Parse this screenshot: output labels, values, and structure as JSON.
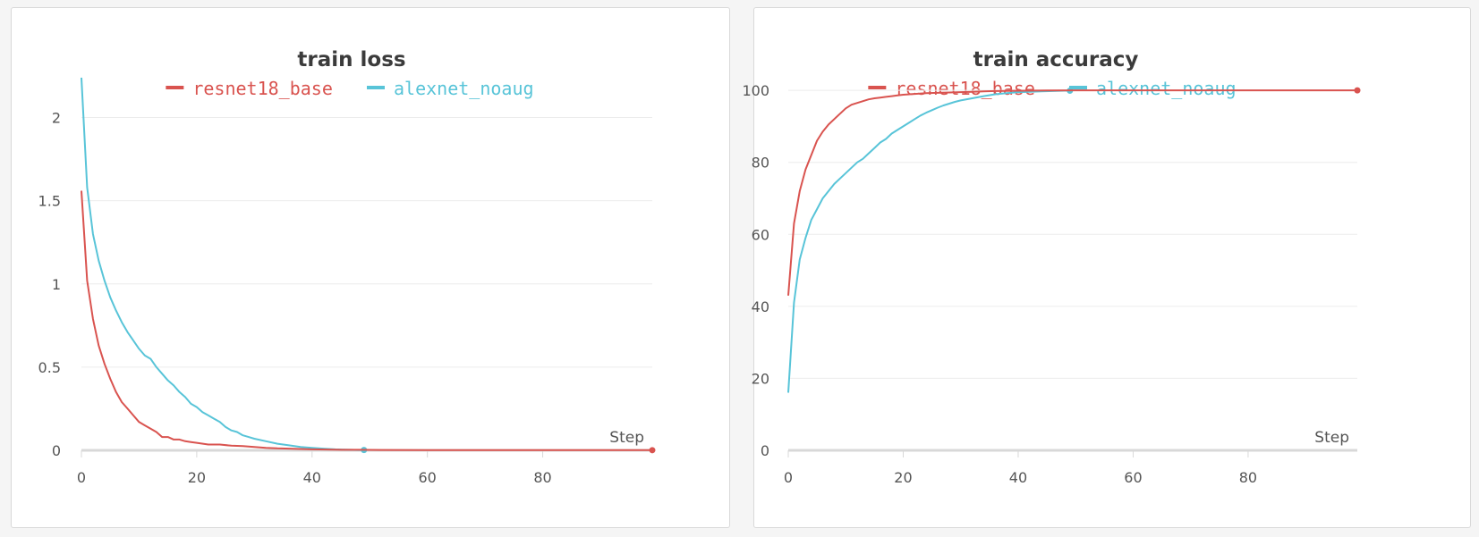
{
  "colors": {
    "resnet18_base": "#d9534f",
    "alexnet_noaug": "#58c4d8",
    "grid": "#ececec",
    "axis": "#d8d8d8"
  },
  "chart_data": [
    {
      "type": "line",
      "title": "train loss",
      "xlabel": "Step",
      "ylabel": "",
      "xlim": [
        0,
        99
      ],
      "ylim": [
        0,
        2.25
      ],
      "xticks": [
        0,
        20,
        40,
        60,
        80
      ],
      "yticks": [
        0,
        0.5,
        1,
        1.5,
        2
      ],
      "xtick_labels": [
        "0",
        "20",
        "40",
        "60",
        "80"
      ],
      "ytick_labels": [
        "0",
        "0.5",
        "1",
        "1.5",
        "2"
      ],
      "grid": true,
      "legend": "top-center",
      "series": [
        {
          "name": "resnet18_base",
          "color": "#d9534f",
          "x": [
            0,
            1,
            2,
            3,
            4,
            5,
            6,
            7,
            8,
            9,
            10,
            11,
            12,
            13,
            14,
            15,
            16,
            17,
            18,
            19,
            20,
            22,
            24,
            26,
            28,
            30,
            32,
            34,
            36,
            38,
            40,
            44,
            48,
            52,
            60,
            70,
            80,
            90,
            99
          ],
          "y": [
            1.56,
            1.02,
            0.79,
            0.63,
            0.52,
            0.43,
            0.35,
            0.29,
            0.25,
            0.21,
            0.17,
            0.15,
            0.13,
            0.11,
            0.08,
            0.08,
            0.065,
            0.065,
            0.055,
            0.05,
            0.045,
            0.035,
            0.035,
            0.028,
            0.025,
            0.02,
            0.015,
            0.012,
            0.01,
            0.008,
            0.006,
            0.004,
            0.003,
            0.002,
            0.001,
            0.001,
            0.001,
            0.001,
            0.001
          ]
        },
        {
          "name": "alexnet_noaug",
          "color": "#58c4d8",
          "x": [
            0,
            1,
            2,
            3,
            4,
            5,
            6,
            7,
            8,
            9,
            10,
            11,
            12,
            13,
            14,
            15,
            16,
            17,
            18,
            19,
            20,
            21,
            22,
            23,
            24,
            25,
            26,
            27,
            28,
            29,
            30,
            32,
            34,
            36,
            38,
            40,
            42,
            44,
            46,
            48,
            49
          ],
          "y": [
            2.24,
            1.58,
            1.3,
            1.14,
            1.02,
            0.92,
            0.84,
            0.77,
            0.71,
            0.66,
            0.61,
            0.57,
            0.55,
            0.5,
            0.46,
            0.42,
            0.39,
            0.35,
            0.32,
            0.28,
            0.26,
            0.23,
            0.21,
            0.19,
            0.17,
            0.14,
            0.12,
            0.11,
            0.09,
            0.08,
            0.07,
            0.055,
            0.04,
            0.03,
            0.02,
            0.015,
            0.01,
            0.006,
            0.004,
            0.002,
            0.002
          ]
        }
      ]
    },
    {
      "type": "line",
      "title": "train accuracy",
      "xlabel": "Step",
      "ylabel": "",
      "xlim": [
        0,
        99
      ],
      "ylim": [
        0,
        104
      ],
      "xticks": [
        0,
        20,
        40,
        60,
        80
      ],
      "yticks": [
        0,
        20,
        40,
        60,
        80,
        100
      ],
      "xtick_labels": [
        "0",
        "20",
        "40",
        "60",
        "80"
      ],
      "ytick_labels": [
        "0",
        "20",
        "40",
        "60",
        "80",
        "100"
      ],
      "grid": true,
      "legend": "top-center",
      "series": [
        {
          "name": "resnet18_base",
          "color": "#d9534f",
          "x": [
            0,
            1,
            2,
            3,
            4,
            5,
            6,
            7,
            8,
            9,
            10,
            11,
            12,
            13,
            14,
            15,
            16,
            17,
            18,
            19,
            20,
            22,
            24,
            26,
            28,
            30,
            32,
            34,
            36,
            38,
            40,
            45,
            50,
            60,
            70,
            80,
            90,
            99
          ],
          "y": [
            43,
            63,
            72,
            78,
            82,
            86,
            88.5,
            90.5,
            92,
            93.5,
            95,
            96,
            96.5,
            97,
            97.5,
            97.8,
            98,
            98.2,
            98.4,
            98.6,
            98.8,
            99,
            99.2,
            99.3,
            99.4,
            99.5,
            99.6,
            99.7,
            99.8,
            99.85,
            99.9,
            99.95,
            100,
            100,
            100,
            100,
            100,
            100
          ]
        },
        {
          "name": "alexnet_noaug",
          "color": "#58c4d8",
          "x": [
            0,
            1,
            2,
            3,
            4,
            5,
            6,
            7,
            8,
            9,
            10,
            11,
            12,
            13,
            14,
            15,
            16,
            17,
            18,
            19,
            20,
            21,
            22,
            23,
            24,
            25,
            26,
            27,
            28,
            29,
            30,
            32,
            34,
            36,
            38,
            40,
            42,
            44,
            46,
            48,
            49
          ],
          "y": [
            16,
            41,
            53,
            59,
            64,
            67,
            70,
            72,
            74,
            75.5,
            77,
            78.5,
            80,
            81,
            82.5,
            84,
            85.5,
            86.5,
            88,
            89,
            90,
            91,
            92,
            93,
            93.8,
            94.5,
            95.2,
            95.8,
            96.3,
            96.8,
            97.2,
            97.8,
            98.4,
            98.9,
            99.2,
            99.5,
            99.6,
            99.7,
            99.8,
            99.9,
            99.9
          ]
        }
      ]
    }
  ]
}
